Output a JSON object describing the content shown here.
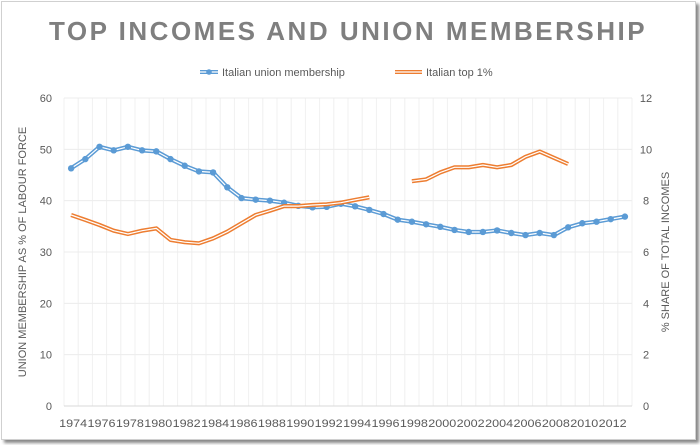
{
  "chart_data": {
    "type": "line",
    "title": "TOP INCOMES AND UNION MEMBERSHIP",
    "xlabel": "",
    "ylabel": "UNION MEMBERSHIP AS % OF LABOUR FORCE",
    "y2label": "% SHARE OF TOTAL INCOMES",
    "ylim": [
      0,
      60
    ],
    "y2lim": [
      0,
      12
    ],
    "yticks": [
      0,
      10,
      20,
      30,
      40,
      50,
      60
    ],
    "y2ticks": [
      0,
      2,
      4,
      6,
      8,
      10,
      12
    ],
    "grid": true,
    "legend_position": "top",
    "x": [
      1974,
      1975,
      1976,
      1977,
      1978,
      1979,
      1980,
      1981,
      1982,
      1983,
      1984,
      1985,
      1986,
      1987,
      1988,
      1989,
      1990,
      1991,
      1992,
      1993,
      1994,
      1995,
      1996,
      1997,
      1998,
      1999,
      2000,
      2001,
      2002,
      2003,
      2004,
      2005,
      2006,
      2007,
      2008,
      2009,
      2010,
      2011,
      2012,
      2013
    ],
    "xticklabels": [
      "1974",
      "1976",
      "1978",
      "1980",
      "1982",
      "1984",
      "1986",
      "1988",
      "1990",
      "1992",
      "1994",
      "1996",
      "1998",
      "2000",
      "2002",
      "2004",
      "2006",
      "2008",
      "2010",
      "2012"
    ],
    "series": [
      {
        "name": "Italian union membership",
        "axis": "left",
        "color": "#5b9bd5",
        "markers": true,
        "values": [
          46.3,
          48.1,
          50.5,
          49.8,
          50.5,
          49.8,
          49.6,
          48.1,
          46.8,
          45.7,
          45.5,
          42.6,
          40.5,
          40.2,
          40.0,
          39.6,
          39.0,
          38.7,
          38.8,
          39.4,
          38.9,
          38.2,
          37.4,
          36.3,
          35.9,
          35.4,
          34.9,
          34.3,
          33.9,
          33.9,
          34.2,
          33.7,
          33.3,
          33.7,
          33.3,
          34.8,
          35.6,
          35.9,
          36.4,
          36.9
        ]
      },
      {
        "name": "Italian top 1%",
        "axis": "right",
        "color": "#ed7d31",
        "markers": false,
        "values": [
          7.44,
          7.25,
          7.05,
          6.83,
          6.7,
          6.83,
          6.92,
          6.47,
          6.38,
          6.34,
          6.53,
          6.79,
          7.12,
          7.44,
          7.61,
          7.79,
          7.79,
          7.83,
          7.86,
          7.92,
          8.03,
          8.13,
          null,
          null,
          8.76,
          8.83,
          9.1,
          9.3,
          9.3,
          9.39,
          9.3,
          9.39,
          9.71,
          9.91,
          9.67,
          9.43,
          null,
          null,
          null,
          null
        ]
      }
    ]
  }
}
